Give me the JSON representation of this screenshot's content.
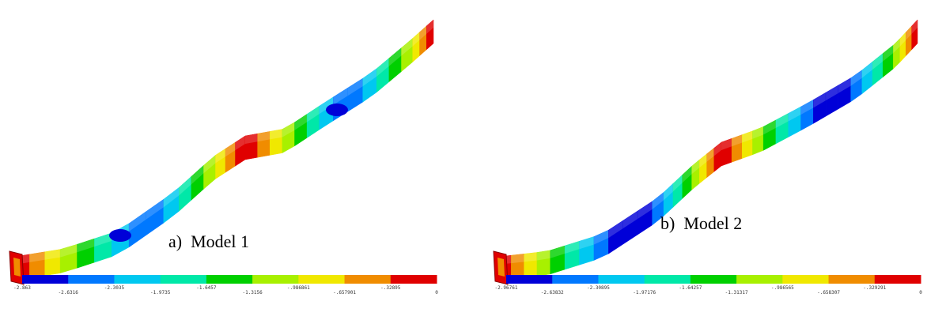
{
  "legend_colors": [
    "#0000d8",
    "#0078ff",
    "#00c8f0",
    "#00e8a8",
    "#00d000",
    "#a8f000",
    "#f0e800",
    "#f08c00",
    "#e00000"
  ],
  "panels": [
    {
      "caption": "a)  Model 1",
      "legend_labels": [
        "-2.863",
        "-2.6316",
        "-2.3035",
        "-1.9735",
        "-1.6457",
        "-1.3156",
        "-.986861",
        "-.657901",
        "-.32895",
        "0"
      ]
    },
    {
      "caption": "b)  Model 2",
      "legend_labels": [
        "-2.96761",
        "-2.63832",
        "-2.30895",
        "-1.97176",
        "-1.64257",
        "-1.31317",
        "-.986565",
        "-.658307",
        "-.329291",
        "0"
      ]
    }
  ]
}
